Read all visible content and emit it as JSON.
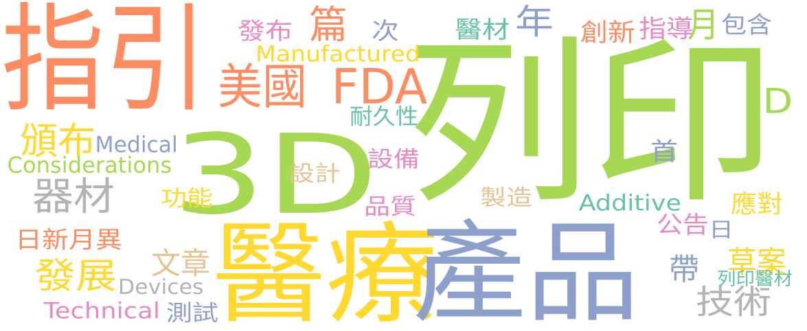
{
  "palette": {
    "orange": "#fc8d62",
    "green": "#a6d854",
    "blue": "#8da0cb",
    "yellow": "#ffd92f",
    "pink": "#e78ac3",
    "teal": "#66c2a5",
    "tan": "#e5c494",
    "gray": "#b3b3b3"
  },
  "words": [
    {
      "text": "指引",
      "color": "#fc8d62"
    },
    {
      "text": "列印",
      "color": "#a6d854"
    },
    {
      "text": "3D",
      "color": "#a6d854"
    },
    {
      "text": "醫療",
      "color": "#ffd92f"
    },
    {
      "text": "產品",
      "color": "#8da0cb"
    },
    {
      "text": "美國",
      "color": "#fc8d62"
    },
    {
      "text": "FDA",
      "color": "#fc8d62"
    },
    {
      "text": "篇",
      "color": "#fc8d62"
    },
    {
      "text": "發布",
      "color": "#e78ac3"
    },
    {
      "text": "次",
      "color": "#8da0cb"
    },
    {
      "text": "醫材",
      "color": "#66c2a5"
    },
    {
      "text": "年",
      "color": "#8da0cb"
    },
    {
      "text": "創新",
      "color": "#fc8d62"
    },
    {
      "text": "指導",
      "color": "#e78ac3"
    },
    {
      "text": "月",
      "color": "#a6d854"
    },
    {
      "text": "包含",
      "color": "#8da0cb"
    },
    {
      "text": "Manufactured",
      "color": "#ffd92f"
    },
    {
      "text": "D",
      "color": "#a6d854"
    },
    {
      "text": "耐久性",
      "color": "#66c2a5"
    },
    {
      "text": "頒布",
      "color": "#ffd92f"
    },
    {
      "text": "Medical",
      "color": "#8da0cb"
    },
    {
      "text": "Considerations",
      "color": "#a6d854"
    },
    {
      "text": "器材",
      "color": "#b3b3b3"
    },
    {
      "text": "設計",
      "color": "#e5c494"
    },
    {
      "text": "設備",
      "color": "#e78ac3"
    },
    {
      "text": "首",
      "color": "#8da0cb"
    },
    {
      "text": "功能",
      "color": "#ffd92f"
    },
    {
      "text": "製造",
      "color": "#e5c494"
    },
    {
      "text": "Additive",
      "color": "#66c2a5"
    },
    {
      "text": "應對",
      "color": "#ffd92f"
    },
    {
      "text": "品質",
      "color": "#e78ac3"
    },
    {
      "text": "公告",
      "color": "#e78ac3"
    },
    {
      "text": "日",
      "color": "#8da0cb"
    },
    {
      "text": "日新月異",
      "color": "#fc8d62"
    },
    {
      "text": "文章",
      "color": "#e5c494"
    },
    {
      "text": "帶",
      "color": "#8da0cb"
    },
    {
      "text": "草案",
      "color": "#ffd92f"
    },
    {
      "text": "發展",
      "color": "#ffd92f"
    },
    {
      "text": "Devices",
      "color": "#b3b3b3"
    },
    {
      "text": "列印醫材",
      "color": "#66c2a5"
    },
    {
      "text": "Technical",
      "color": "#e78ac3"
    },
    {
      "text": "測試",
      "color": "#8da0cb"
    },
    {
      "text": "技術",
      "color": "#b3b3b3"
    }
  ]
}
